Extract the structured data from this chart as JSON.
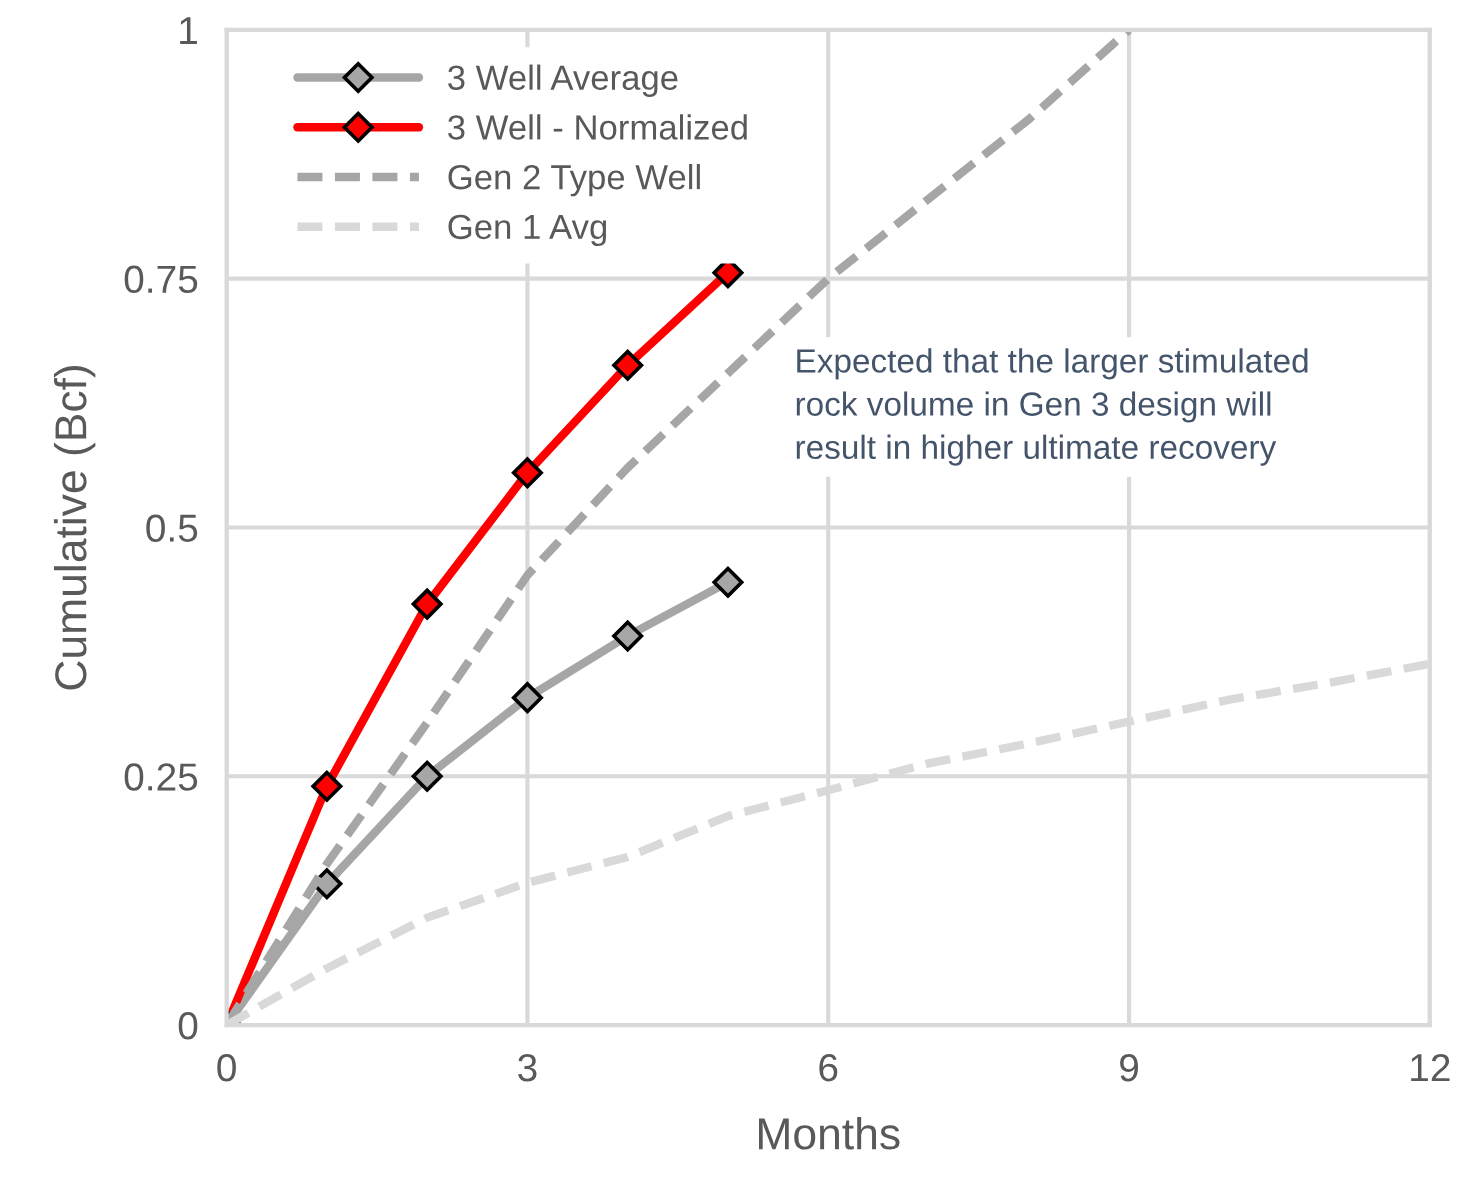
{
  "chart_data": {
    "type": "line",
    "xlabel": "Months",
    "ylabel": "Cumulative (Bcf)",
    "xlim": [
      0,
      12
    ],
    "ylim": [
      0,
      1
    ],
    "xticks": [
      0,
      3,
      6,
      9,
      12
    ],
    "yticks": [
      0,
      0.25,
      0.5,
      0.75,
      1
    ],
    "grid": true,
    "legend": "top left",
    "series": [
      {
        "name": "3 Well Average",
        "color": "#a6a6a6",
        "marker": "diamond",
        "line_style": "solid",
        "x": [
          0,
          1,
          2,
          3,
          4,
          5
        ],
        "values": [
          0,
          0.142,
          0.25,
          0.329,
          0.391,
          0.445
        ]
      },
      {
        "name": "3 Well - Normalized",
        "color": "#ff0000",
        "marker": "diamond",
        "line_style": "solid",
        "x": [
          0,
          1,
          2,
          3,
          4,
          5
        ],
        "values": [
          0,
          0.24,
          0.423,
          0.555,
          0.663,
          0.756
        ]
      },
      {
        "name": "Gen 2 Type Well",
        "color": "#a6a6a6",
        "marker": "none",
        "line_style": "dashed",
        "x": [
          0,
          1,
          2,
          3,
          4,
          5,
          6,
          7,
          8,
          9
        ],
        "values": [
          0,
          0.162,
          0.304,
          0.452,
          0.56,
          0.655,
          0.75,
          0.83,
          0.91,
          1.0
        ]
      },
      {
        "name": "Gen 1 Avg",
        "color": "#d9d9d9",
        "marker": "none",
        "line_style": "dashed",
        "x": [
          0,
          1,
          2,
          3,
          4,
          5,
          6,
          7,
          8,
          9,
          10,
          11,
          12
        ],
        "values": [
          0,
          0.057,
          0.108,
          0.143,
          0.169,
          0.21,
          0.236,
          0.263,
          0.283,
          0.305,
          0.327,
          0.344,
          0.363
        ]
      }
    ],
    "annotations": [
      "Expected that the larger stimulated\nrock volume in Gen 3 design will\nresult in higher ultimate recovery"
    ]
  }
}
